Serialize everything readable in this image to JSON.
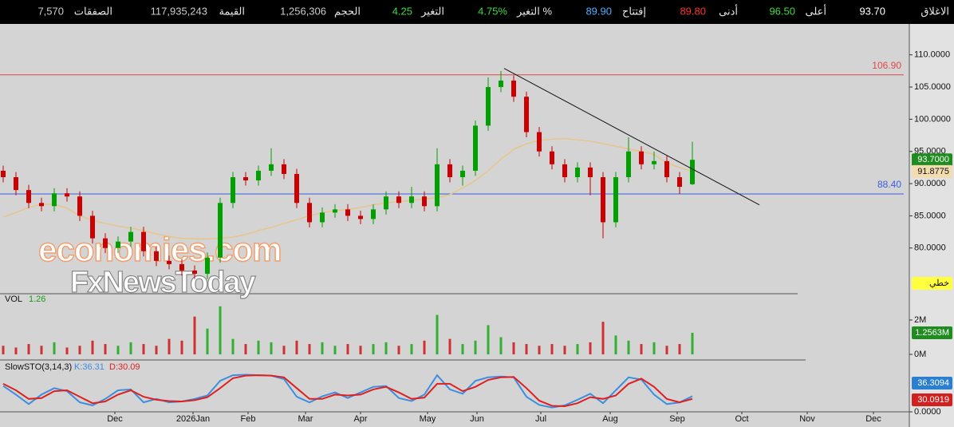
{
  "ticker_bar": [
    {
      "label": "الاغلاق",
      "value": "93.70",
      "color": "#ffffff"
    },
    {
      "label": "أعلى",
      "value": "96.50",
      "color": "#3ddc3d"
    },
    {
      "label": "أدنى",
      "value": "89.80",
      "color": "#ff3030"
    },
    {
      "label": "إفتتاح",
      "value": "89.90",
      "color": "#4ab0ff"
    },
    {
      "label": "التغير %",
      "value": "4.75%",
      "color": "#3ddc3d"
    },
    {
      "label": "التغير",
      "value": "4.25",
      "color": "#3ddc3d"
    },
    {
      "label": "الحجم",
      "value": "1,256,306",
      "color": "#cccccc"
    },
    {
      "label": "القيمة",
      "value": "117,935,243",
      "color": "#cccccc"
    },
    {
      "label": "الصفقات",
      "value": "7,570",
      "color": "#cccccc"
    }
  ],
  "chart_data": [
    {
      "type": "candlestick",
      "x": [
        1,
        5,
        9,
        13,
        17,
        21,
        25,
        29,
        33,
        37,
        41,
        45,
        49,
        53,
        57,
        61,
        65,
        69,
        73,
        77,
        81,
        85,
        89,
        93,
        97,
        101,
        105,
        109,
        113,
        117,
        121,
        125,
        129,
        133,
        137,
        141,
        145,
        149,
        153,
        157,
        161,
        165,
        169,
        173,
        177,
        181,
        185,
        189,
        193,
        197,
        201,
        205,
        209,
        213,
        217
      ],
      "xlim": [
        0,
        285
      ],
      "xticks": [
        {
          "value": 36,
          "label": "Dec"
        },
        {
          "value": 60.5,
          "label": "2026Jan"
        },
        {
          "value": 77.75,
          "label": "Feb"
        },
        {
          "value": 95.75,
          "label": "Mar"
        },
        {
          "value": 113,
          "label": "Apr"
        },
        {
          "value": 134,
          "label": "May"
        },
        {
          "value": 149.5,
          "label": "Jun"
        },
        {
          "value": 169.5,
          "label": "Jul"
        },
        {
          "value": 191.25,
          "label": "Aug"
        },
        {
          "value": 212.25,
          "label": "Sep"
        },
        {
          "value": 232.5,
          "label": "Oct"
        },
        {
          "value": 253,
          "label": "Nov"
        },
        {
          "value": 273.75,
          "label": "Dec"
        }
      ],
      "open": [
        92,
        91,
        89,
        87,
        86.5,
        88.5,
        88,
        85,
        81.5,
        80,
        81,
        82.5,
        79.5,
        78,
        77.5,
        76.5,
        76,
        78.5,
        87,
        91,
        90.5,
        92,
        93,
        91.5,
        87,
        84,
        85.5,
        86,
        85,
        84.5,
        86,
        88,
        87,
        88,
        86.5,
        93,
        91,
        92,
        99,
        105,
        106,
        103.5,
        98,
        95,
        93,
        91,
        92.5,
        91,
        84,
        91,
        95,
        93,
        93.5,
        91,
        89.9
      ],
      "high": [
        92.8,
        91.8,
        89.8,
        87.8,
        89.3,
        89.3,
        88.8,
        85.8,
        82.3,
        81.8,
        83.3,
        83.3,
        80.3,
        78.8,
        78.3,
        77.3,
        79.3,
        87.8,
        91.8,
        91.8,
        92.8,
        95.5,
        93.8,
        92.3,
        87.8,
        86.3,
        86.8,
        86.8,
        85.8,
        86.8,
        88.8,
        88.8,
        89.5,
        88.8,
        95.5,
        93.8,
        92.8,
        99.8,
        106.5,
        107.5,
        106.8,
        104.3,
        98.8,
        95.8,
        93.8,
        93.3,
        93.3,
        91.8,
        91.8,
        97.2,
        95.8,
        95,
        94.3,
        91.8,
        96.5
      ],
      "low": [
        90.2,
        88.2,
        86.2,
        85.7,
        85.7,
        87.2,
        84.2,
        80.7,
        79.2,
        79.2,
        80.2,
        78.7,
        77.2,
        76.7,
        75.7,
        75.2,
        75.2,
        77.7,
        86.2,
        89.7,
        89.7,
        91.2,
        90.7,
        86.2,
        83.2,
        83.2,
        84.7,
        84.2,
        83.7,
        83.7,
        85.2,
        86.2,
        86.2,
        85.7,
        85.7,
        90.2,
        89.7,
        91.2,
        98.2,
        104.2,
        102.7,
        97.2,
        94.2,
        92.2,
        90.2,
        90.2,
        88.2,
        81.5,
        83.2,
        90.2,
        92.2,
        92.2,
        90.2,
        88.4,
        89.8
      ],
      "close": [
        91,
        89,
        87,
        86.5,
        88.5,
        88,
        85,
        81.5,
        80,
        81,
        82.5,
        79.5,
        78,
        77.5,
        76.5,
        76,
        78.5,
        87,
        91,
        90.5,
        92,
        93,
        91.5,
        87,
        84,
        85.5,
        86,
        85,
        84.5,
        86,
        88,
        87,
        88,
        86.5,
        93,
        91,
        92,
        99,
        105,
        106,
        103.5,
        98,
        95,
        93,
        91,
        92.5,
        91,
        84,
        91,
        95,
        93,
        93.5,
        91,
        89.5,
        93.7
      ],
      "up_color": "#00a000",
      "down_color": "#cc0000",
      "ylim": [
        72.9,
        114.8
      ],
      "yticks": [
        {
          "value": 80,
          "label": "80.0000"
        },
        {
          "value": 85,
          "label": "85.0000"
        },
        {
          "value": 90,
          "label": "90.0000"
        },
        {
          "value": 95,
          "label": "95.0000"
        },
        {
          "value": 100,
          "label": "100.0000"
        },
        {
          "value": 105,
          "label": "105.0000"
        },
        {
          "value": 110,
          "label": "110.0000"
        }
      ],
      "ma": {
        "color": "#e8c48a",
        "values": [
          84.8,
          85.5,
          86.3,
          86.8,
          86.8,
          86.2,
          85,
          84.3,
          83.8,
          83.4,
          83.1,
          82.7,
          82.2,
          81.8,
          81.5,
          81.4,
          81.4,
          81.5,
          81.7,
          82.1,
          82.7,
          83.2,
          83.8,
          84.4,
          85,
          85.5,
          85.8,
          86,
          86.3,
          86.7,
          87,
          87.2,
          87.4,
          87.6,
          87.8,
          88.3,
          89.3,
          90.5,
          92,
          93.8,
          95.3,
          96.2,
          96.7,
          96.9,
          97,
          96.8,
          96.6,
          96.2,
          95.8,
          95.4,
          95,
          94.5,
          93.2,
          92.5,
          91.8775
        ]
      },
      "hlines": [
        {
          "value": 106.9,
          "label": "106.90",
          "color": "#e04848"
        },
        {
          "value": 88.4,
          "label": "88.40",
          "color": "#3a5ee0"
        }
      ],
      "trendline": {
        "x": [
          158,
          238
        ],
        "values": [
          107.9,
          86.7
        ],
        "color": "#111111"
      },
      "last_badge": {
        "value": 93.7,
        "label": "93.7000",
        "color": "#1e8c1e"
      },
      "ma_badge": "91.8775",
      "style_label": "خطي",
      "watermark": [
        "economies.com",
        "FxNewsToday"
      ]
    },
    {
      "type": "bar",
      "title": "VOL",
      "last_label": "1.26",
      "values": [
        500000,
        400000,
        600000,
        500000,
        700000,
        400000,
        500000,
        800000,
        600000,
        500000,
        700000,
        600000,
        500000,
        900000,
        800000,
        2200000,
        1500000,
        2800000,
        900000,
        600000,
        800000,
        700000,
        500000,
        800000,
        600000,
        700000,
        500000,
        600000,
        500000,
        600000,
        700000,
        500000,
        600000,
        800000,
        2300000,
        900000,
        600000,
        800000,
        1700000,
        1000000,
        700000,
        600000,
        500000,
        600000,
        500000,
        600000,
        700000,
        1900000,
        1100000,
        800000,
        600000,
        700000,
        500000,
        600000,
        1256306
      ],
      "ylim": [
        -280000,
        3440000
      ],
      "yticks": [
        {
          "value": 0,
          "label": "0M"
        },
        {
          "value": 2000000,
          "label": "2M"
        }
      ],
      "badge": "1.2563M"
    },
    {
      "type": "line",
      "title": "SlowSTO(3,14,3)",
      "ylim": [
        0,
        100
      ],
      "yticks": [
        {
          "value": 0,
          "label": "0.0000"
        }
      ],
      "series": [
        {
          "name": "K:36.31",
          "color": "#3a8fe0",
          "badge": "36.3094",
          "values": [
            60,
            40,
            18,
            40,
            55,
            48,
            22,
            15,
            30,
            50,
            52,
            22,
            30,
            22,
            24,
            30,
            38,
            72,
            85,
            86,
            85,
            84,
            76,
            35,
            22,
            36,
            45,
            32,
            45,
            58,
            60,
            32,
            25,
            40,
            85,
            52,
            42,
            72,
            80,
            82,
            80,
            35,
            16,
            10,
            15,
            28,
            42,
            20,
            50,
            80,
            75,
            40,
            18,
            22,
            36.31
          ]
        },
        {
          "name": "D:30.09",
          "color": "#e02020",
          "badge": "30.0919",
          "values": [
            65,
            50,
            30,
            32,
            48,
            50,
            35,
            20,
            24,
            40,
            50,
            35,
            28,
            25,
            24,
            27,
            34,
            55,
            78,
            84,
            85,
            84,
            80,
            55,
            30,
            30,
            40,
            38,
            40,
            52,
            58,
            45,
            30,
            33,
            65,
            65,
            48,
            58,
            74,
            80,
            81,
            55,
            26,
            14,
            13,
            20,
            34,
            30,
            38,
            65,
            77,
            58,
            30,
            22,
            30.09
          ]
        }
      ]
    }
  ]
}
